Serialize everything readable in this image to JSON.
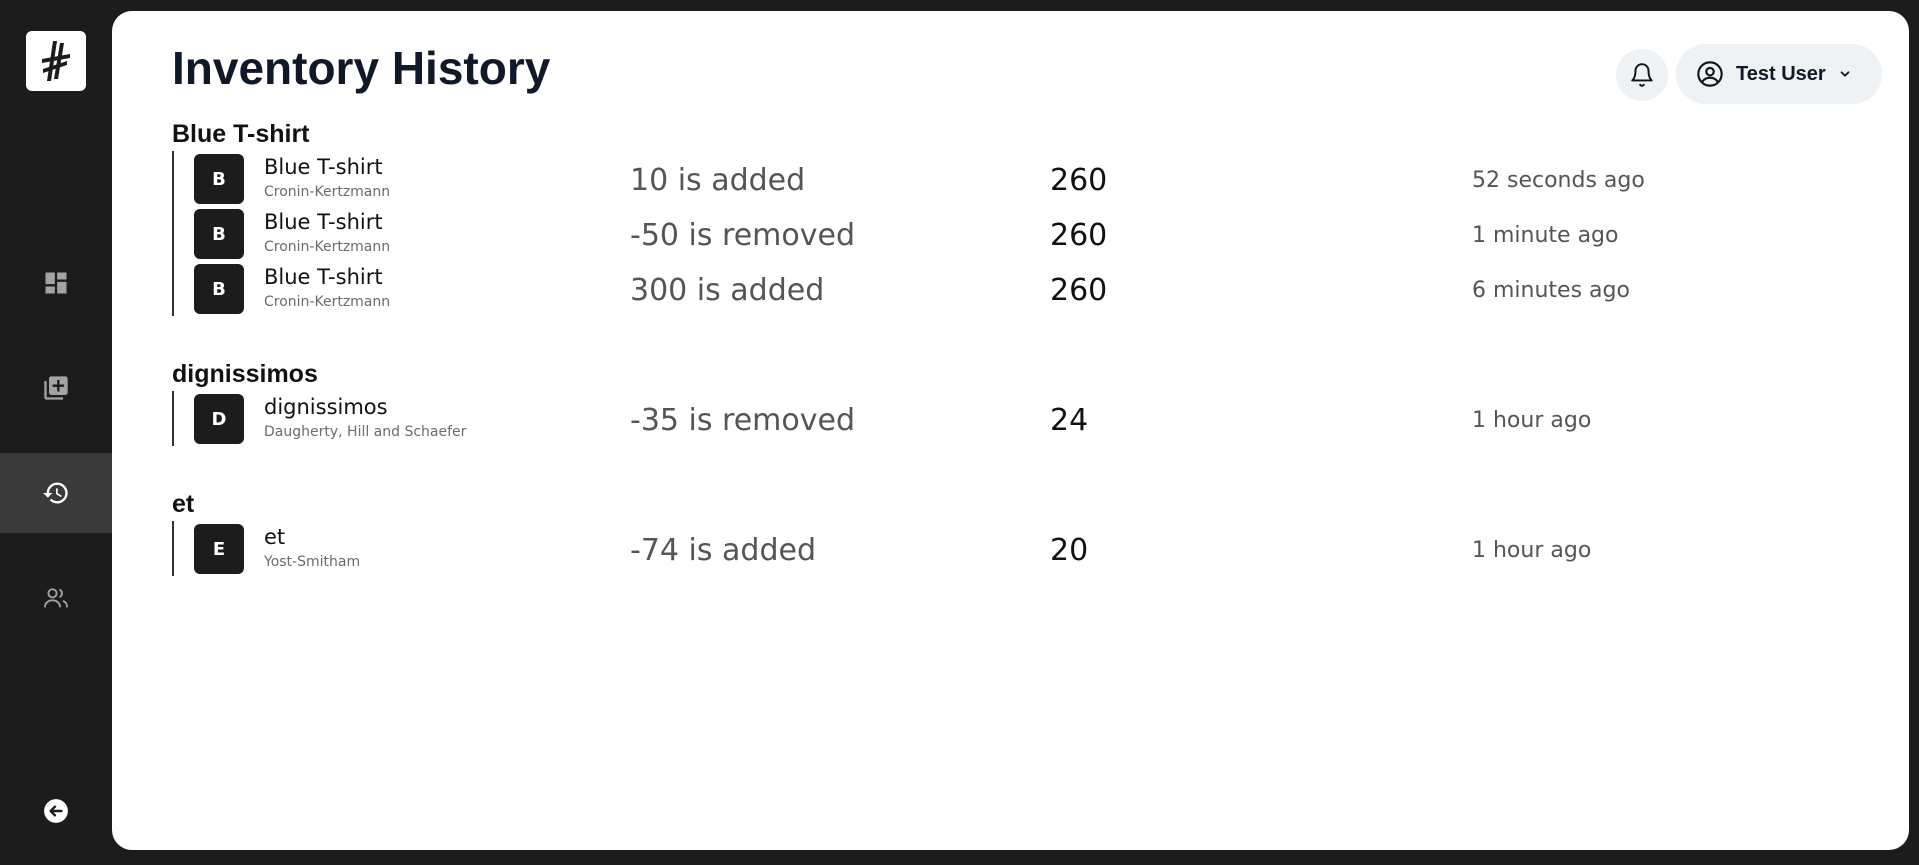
{
  "page": {
    "title": "Inventory History"
  },
  "header": {
    "user_name": "Test User"
  },
  "sidebar": {
    "items": [
      {
        "name": "dashboard",
        "icon": "dashboard-icon",
        "active": false
      },
      {
        "name": "add-product",
        "icon": "library-add-icon",
        "active": false
      },
      {
        "name": "history",
        "icon": "history-icon",
        "active": true
      },
      {
        "name": "users",
        "icon": "users-icon",
        "active": false
      }
    ]
  },
  "groups": [
    {
      "title": "Blue T-shirt",
      "rows": [
        {
          "initial": "B",
          "name": "Blue T-shirt",
          "brand": "Cronin-Kertzmann",
          "change": "10 is added",
          "quantity": "260",
          "time": "52 seconds ago"
        },
        {
          "initial": "B",
          "name": "Blue T-shirt",
          "brand": "Cronin-Kertzmann",
          "change": "-50 is removed",
          "quantity": "260",
          "time": "1 minute ago"
        },
        {
          "initial": "B",
          "name": "Blue T-shirt",
          "brand": "Cronin-Kertzmann",
          "change": "300 is added",
          "quantity": "260",
          "time": "6 minutes ago"
        }
      ]
    },
    {
      "title": "dignissimos",
      "rows": [
        {
          "initial": "D",
          "name": "dignissimos",
          "brand": "Daugherty, Hill and Schaefer",
          "change": "-35 is removed",
          "quantity": "24",
          "time": "1 hour ago"
        }
      ]
    },
    {
      "title": "et",
      "rows": [
        {
          "initial": "E",
          "name": "et",
          "brand": "Yost-Smitham",
          "change": "-74 is added",
          "quantity": "20",
          "time": "1 hour ago"
        }
      ]
    }
  ]
}
